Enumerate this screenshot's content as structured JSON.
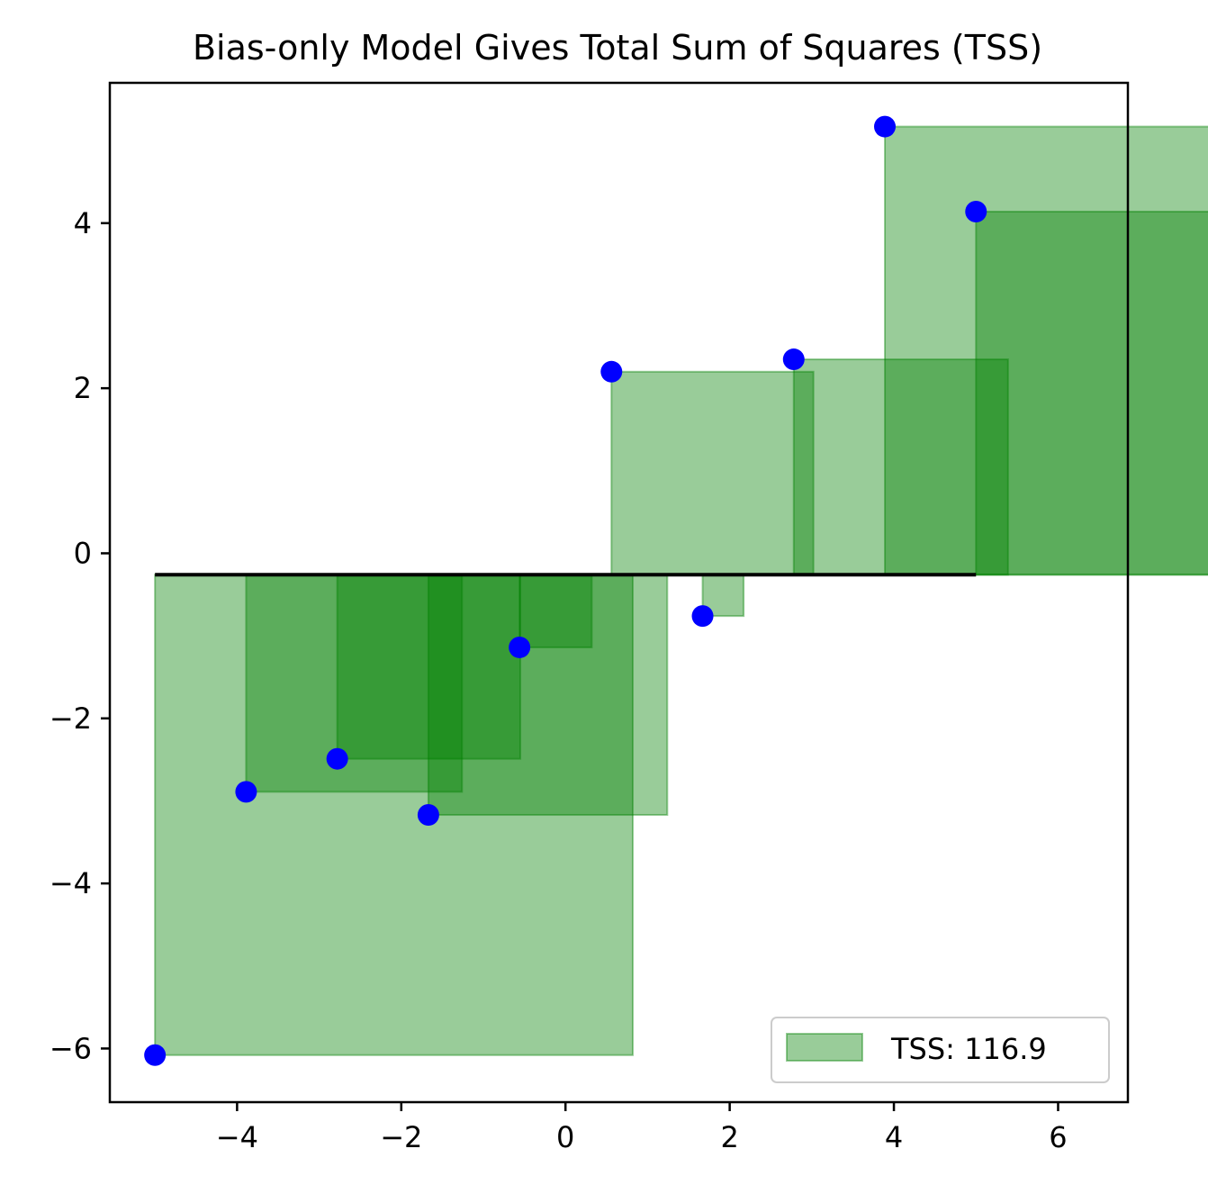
{
  "chart_data": {
    "type": "scatter",
    "title": "Bias-only Model Gives Total Sum of Squares (TSS)",
    "xlabel": "",
    "ylabel": "",
    "xlim": [
      -5.55,
      6.85
    ],
    "ylim": [
      -6.65,
      5.7
    ],
    "xticks": [
      -4,
      -2,
      0,
      2,
      4,
      6
    ],
    "yticks": [
      -6,
      -4,
      -2,
      0,
      2,
      4
    ],
    "x_tick_labels": [
      "−4",
      "−2",
      "0",
      "2",
      "4",
      "6"
    ],
    "y_tick_labels": [
      "−6",
      "−4",
      "−2",
      "0",
      "2",
      "4"
    ],
    "bias": -0.26,
    "points": [
      {
        "x": -5.0,
        "y": -6.08
      },
      {
        "x": -3.89,
        "y": -2.89
      },
      {
        "x": -2.78,
        "y": -2.49
      },
      {
        "x": -1.67,
        "y": -3.17
      },
      {
        "x": -0.56,
        "y": -1.14
      },
      {
        "x": 0.56,
        "y": 2.2
      },
      {
        "x": 1.67,
        "y": -0.76
      },
      {
        "x": 2.78,
        "y": 2.35
      },
      {
        "x": 3.89,
        "y": 5.17
      },
      {
        "x": 5.0,
        "y": 4.14
      }
    ],
    "point_color": "#0000ff",
    "square_color": "#008000",
    "line_color": "#000000",
    "grid": false,
    "legend": {
      "label": "TSS: 116.9",
      "position": "lower-right"
    }
  }
}
